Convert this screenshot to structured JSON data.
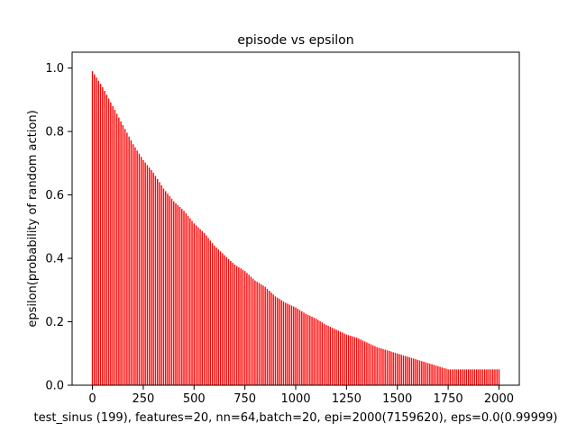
{
  "chart_data": {
    "type": "bar",
    "title": "episode vs epsilon",
    "xlabel": "test_sinus (199), features=20, nn=64,batch=20, epi=2000(7159620), eps=0.0(0.99999)",
    "ylabel": "epsilon(probability of random action)",
    "xlim": [
      -100,
      2100
    ],
    "ylim": [
      0,
      1.05
    ],
    "x_ticks": [
      0,
      250,
      500,
      750,
      1000,
      1250,
      1500,
      1750,
      2000
    ],
    "x_tick_labels": [
      "0",
      "250",
      "500",
      "750",
      "1000",
      "1250",
      "1500",
      "1750",
      "2000"
    ],
    "y_ticks": [
      0,
      0.2,
      0.4,
      0.6,
      0.8,
      1.0
    ],
    "y_tick_labels": [
      "0.0",
      "0.2",
      "0.4",
      "0.6",
      "0.8",
      "1.0"
    ],
    "grid": false,
    "bar_color": "#ff0000",
    "x": [
      0,
      50,
      100,
      150,
      200,
      250,
      300,
      350,
      400,
      450,
      500,
      550,
      600,
      650,
      700,
      750,
      800,
      850,
      900,
      950,
      1000,
      1050,
      1100,
      1150,
      1200,
      1250,
      1300,
      1350,
      1400,
      1450,
      1500,
      1550,
      1600,
      1650,
      1700,
      1750,
      1800,
      1850,
      1900,
      1950,
      2000
    ],
    "values": [
      0.99,
      0.94,
      0.88,
      0.82,
      0.76,
      0.71,
      0.67,
      0.62,
      0.58,
      0.55,
      0.51,
      0.48,
      0.44,
      0.41,
      0.38,
      0.36,
      0.33,
      0.31,
      0.28,
      0.26,
      0.245,
      0.225,
      0.21,
      0.19,
      0.175,
      0.16,
      0.15,
      0.135,
      0.12,
      0.11,
      0.1,
      0.09,
      0.08,
      0.07,
      0.06,
      0.05,
      0.05,
      0.05,
      0.05,
      0.05,
      0.05
    ]
  }
}
